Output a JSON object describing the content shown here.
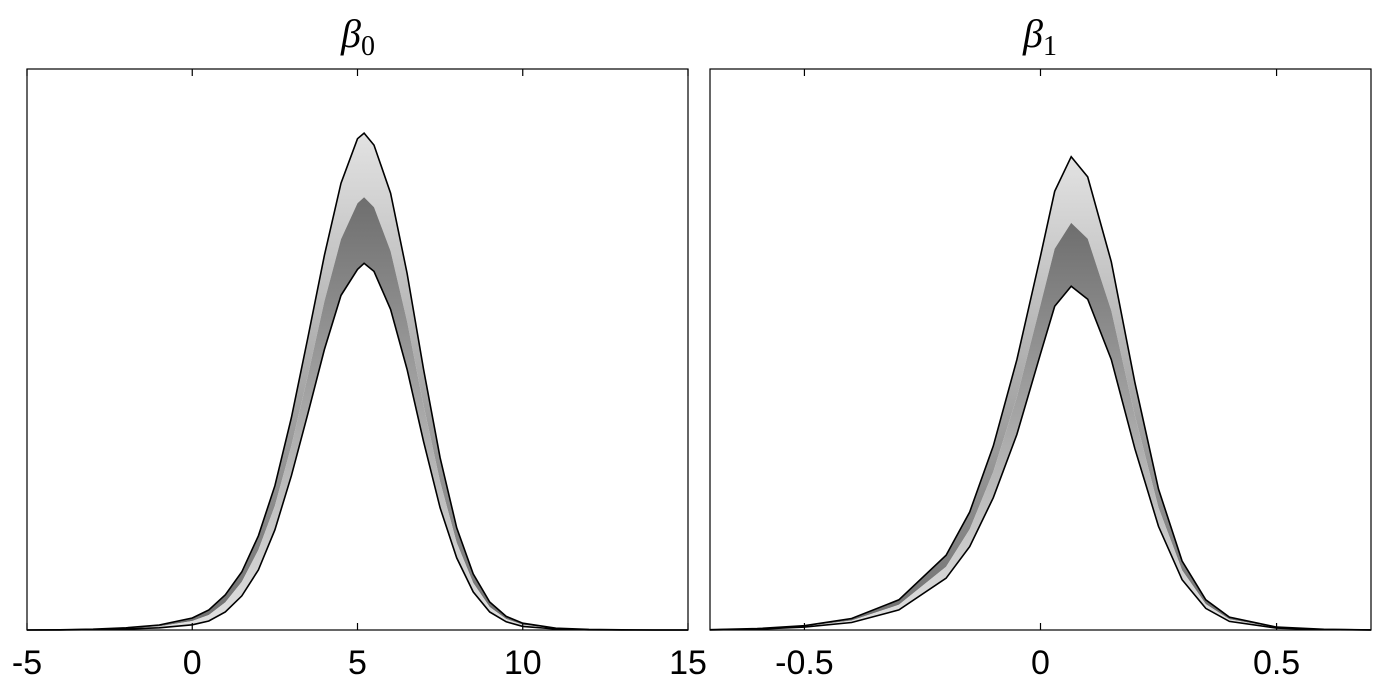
{
  "chart_data": [
    {
      "type": "area",
      "title": "β",
      "title_subscript": "0",
      "xlim": [
        -5,
        15
      ],
      "ylim": [
        0,
        0.28
      ],
      "xticks": [
        -5,
        0,
        5,
        10,
        15
      ],
      "xtick_labels": [
        "-5",
        "0",
        "5",
        "10",
        "15"
      ],
      "show_yticks": false,
      "grid": false,
      "band": {
        "x": [
          -5,
          -4,
          -3,
          -2,
          -1,
          0,
          0.5,
          1,
          1.5,
          2,
          2.5,
          3,
          3.5,
          4,
          4.5,
          5,
          5.2,
          5.5,
          6,
          6.5,
          7,
          7.5,
          8,
          8.5,
          9,
          9.5,
          10,
          11,
          12,
          13,
          14,
          15
        ],
        "upper": [
          0,
          0.0001,
          0.0004,
          0.0011,
          0.0025,
          0.006,
          0.01,
          0.0175,
          0.029,
          0.047,
          0.072,
          0.106,
          0.146,
          0.187,
          0.223,
          0.2452,
          0.248,
          0.242,
          0.218,
          0.178,
          0.13,
          0.086,
          0.051,
          0.028,
          0.014,
          0.0068,
          0.0034,
          0.0009,
          0.0003,
          0.0001,
          0,
          0
        ],
        "mid": [
          0,
          8e-05,
          0.0003,
          0.0008,
          0.0018,
          0.0045,
          0.0075,
          0.0138,
          0.024,
          0.04,
          0.062,
          0.092,
          0.127,
          0.164,
          0.195,
          0.213,
          0.216,
          0.211,
          0.189,
          0.154,
          0.112,
          0.074,
          0.0435,
          0.0235,
          0.0115,
          0.0055,
          0.0026,
          0.0007,
          0.0002,
          5e-05,
          0,
          0
        ],
        "lower": [
          0,
          5e-05,
          0.0002,
          0.0005,
          0.0011,
          0.0026,
          0.0045,
          0.009,
          0.017,
          0.03,
          0.05,
          0.077,
          0.108,
          0.14,
          0.167,
          0.18,
          0.183,
          0.179,
          0.16,
          0.13,
          0.094,
          0.061,
          0.036,
          0.019,
          0.009,
          0.0041,
          0.0018,
          0.0005,
          0.0001,
          0,
          0,
          0
        ]
      }
    },
    {
      "type": "area",
      "title": "β",
      "title_subscript": "1",
      "xlim": [
        -0.7,
        0.7
      ],
      "ylim": [
        0,
        3.9
      ],
      "xticks": [
        -0.5,
        0,
        0.5
      ],
      "xtick_labels": [
        "-0.5",
        "0",
        "0.5"
      ],
      "show_yticks": false,
      "grid": false,
      "band": {
        "x": [
          -0.7,
          -0.6,
          -0.5,
          -0.4,
          -0.3,
          -0.2,
          -0.15,
          -0.1,
          -0.05,
          0,
          0.03,
          0.065,
          0.1,
          0.15,
          0.2,
          0.25,
          0.3,
          0.35,
          0.4,
          0.5,
          0.6,
          0.7
        ],
        "upper": [
          0.002,
          0.01,
          0.03,
          0.08,
          0.21,
          0.52,
          0.82,
          1.28,
          1.88,
          2.6,
          3.05,
          3.29,
          3.15,
          2.56,
          1.72,
          0.98,
          0.48,
          0.21,
          0.09,
          0.02,
          0.005,
          0.001
        ],
        "mid": [
          0.002,
          0.008,
          0.025,
          0.066,
          0.175,
          0.44,
          0.7,
          1.1,
          1.62,
          2.26,
          2.65,
          2.83,
          2.72,
          2.22,
          1.49,
          0.85,
          0.415,
          0.18,
          0.075,
          0.016,
          0.004,
          0.001
        ],
        "lower": [
          0.001,
          0.006,
          0.02,
          0.052,
          0.14,
          0.36,
          0.58,
          0.92,
          1.36,
          1.92,
          2.25,
          2.39,
          2.3,
          1.88,
          1.26,
          0.72,
          0.35,
          0.15,
          0.06,
          0.013,
          0.003,
          0.001
        ]
      }
    }
  ],
  "colors": {
    "band_center": "#6e6e6e",
    "band_edge_fill": "#e2e2e2",
    "outline": "#000000",
    "background": "#ffffff"
  }
}
